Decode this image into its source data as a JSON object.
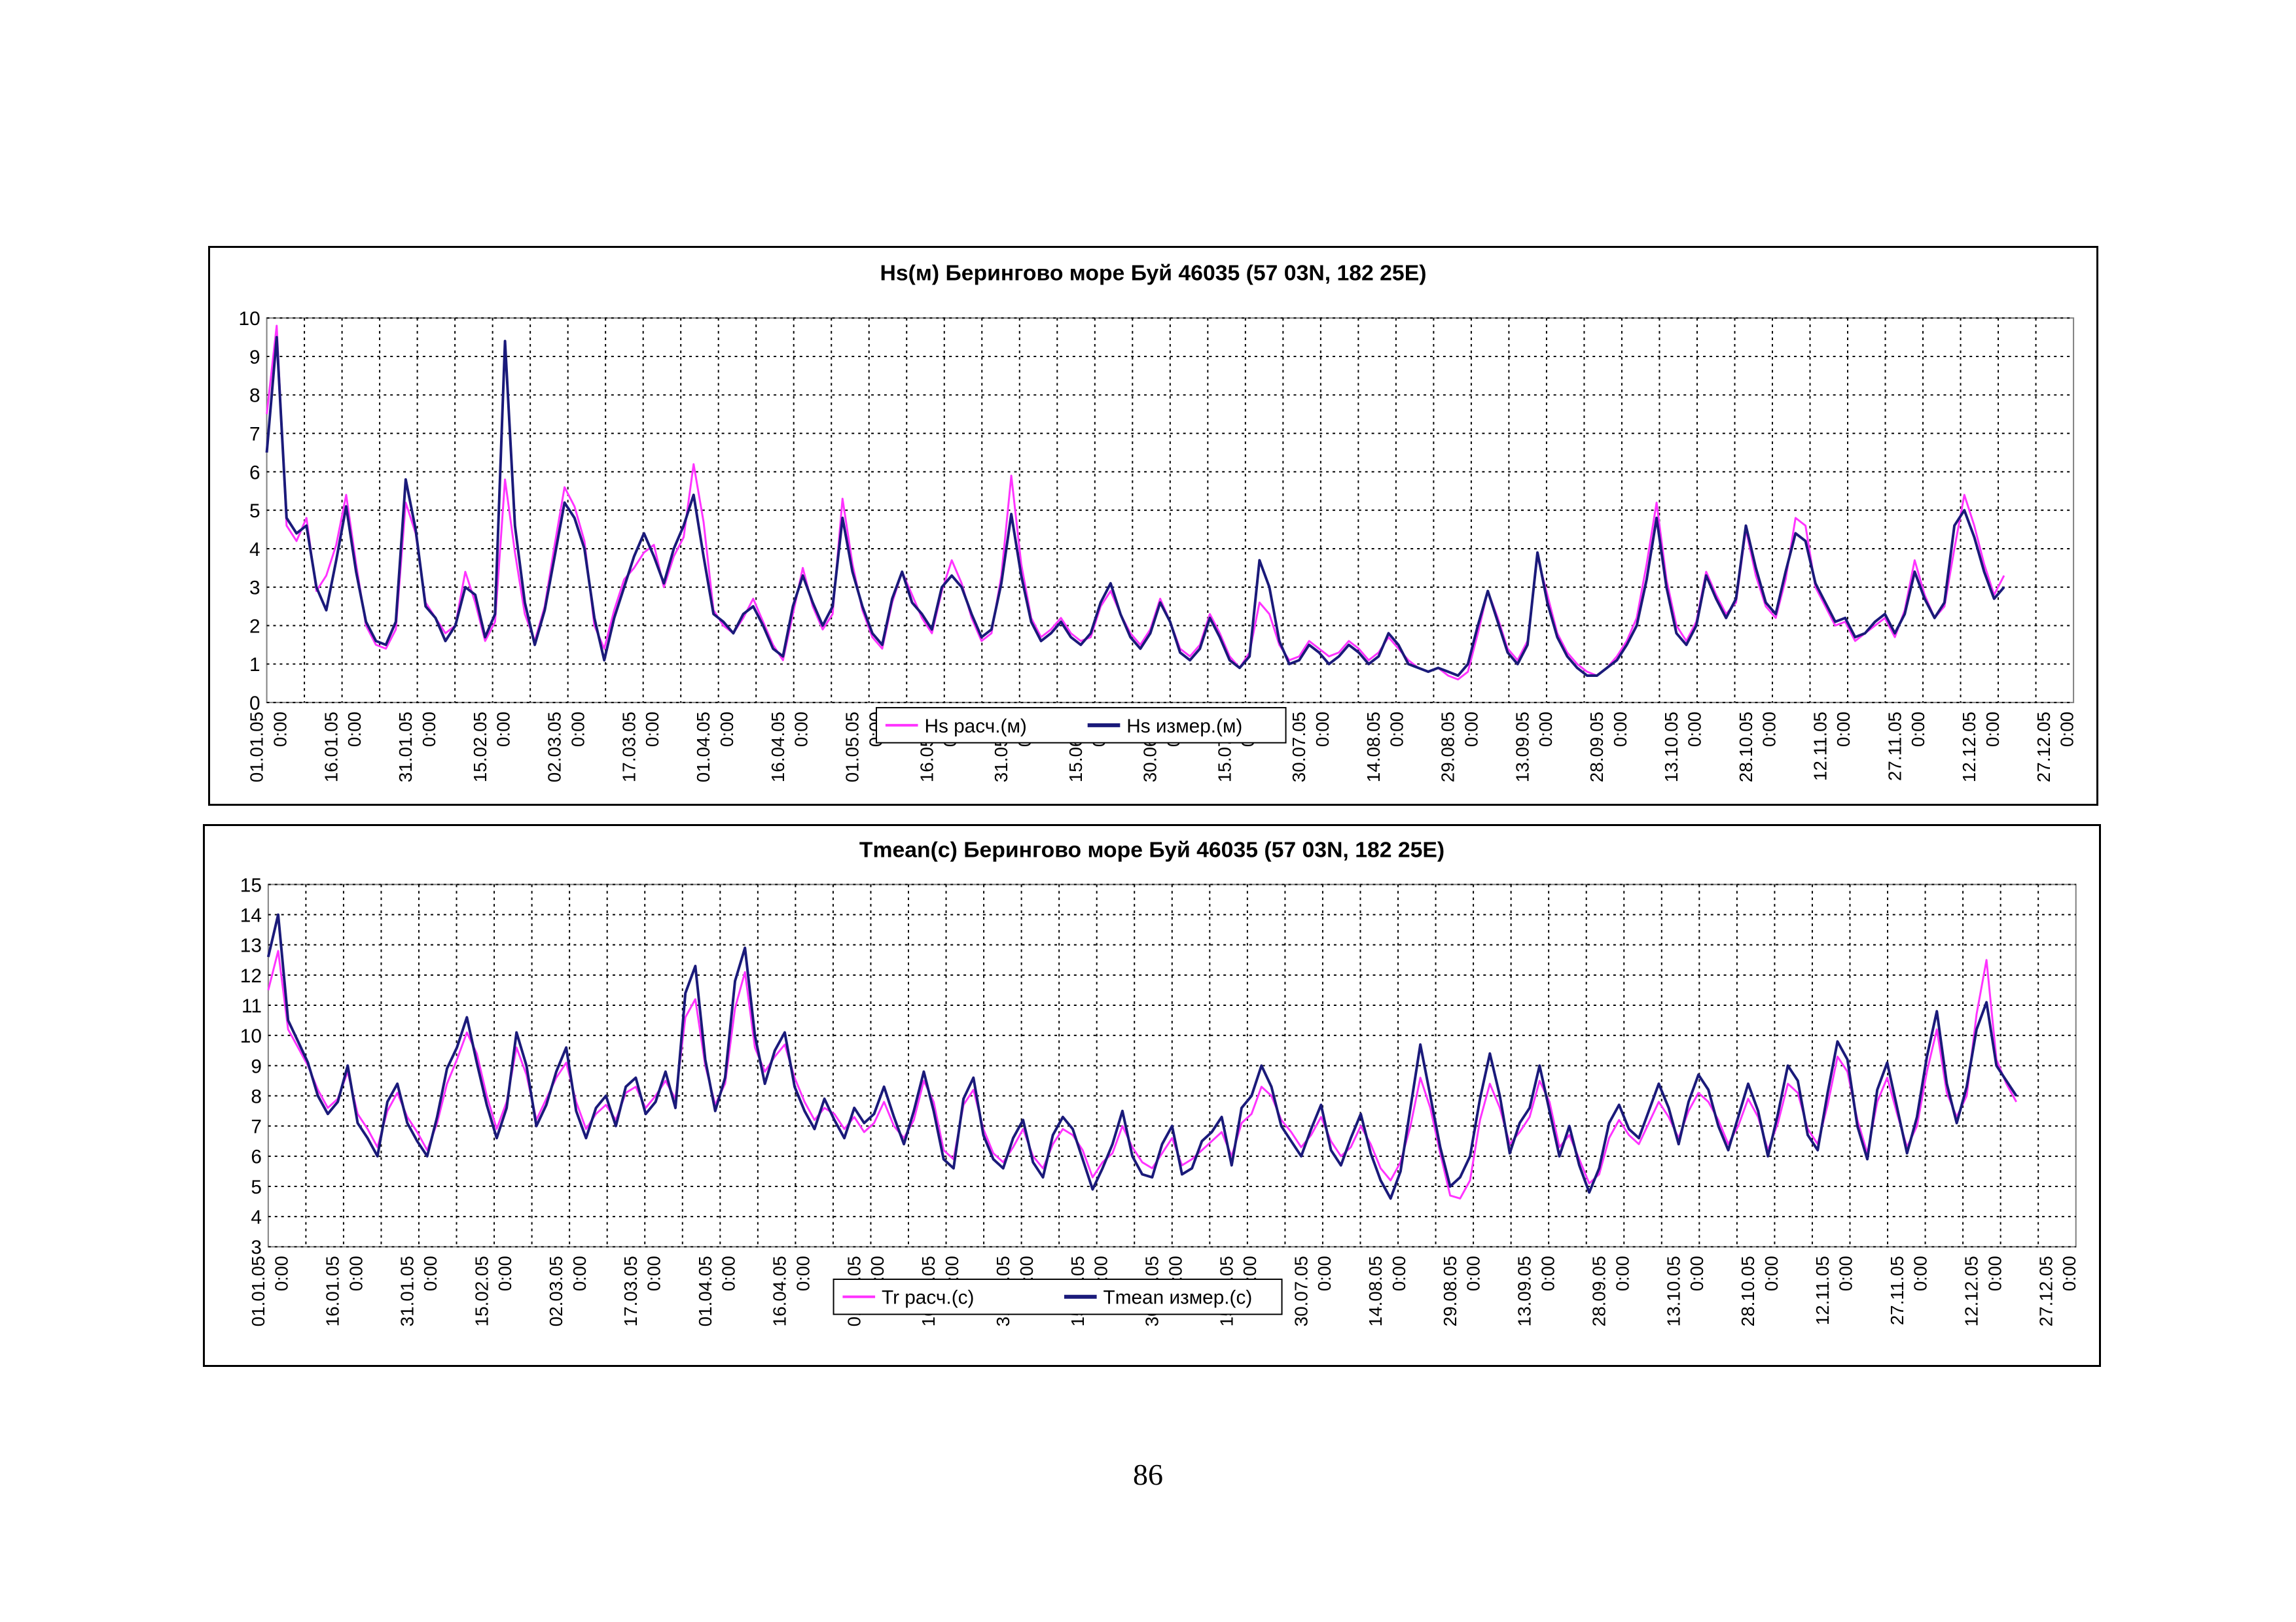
{
  "page": {
    "number": "86"
  },
  "chart_data": [
    {
      "type": "line",
      "title": "Hs(м) Берингово море Буй 46035 (57 03N, 182 25E)",
      "xlabel": "",
      "ylabel": "",
      "ylim": [
        0,
        10
      ],
      "yticks": [
        0,
        1,
        2,
        3,
        4,
        5,
        6,
        7,
        8,
        9,
        10
      ],
      "grid": true,
      "legend_position": "bottom-center",
      "tick_labels": [
        "01.01.05 0:00",
        "16.01.05 0:00",
        "31.01.05 0:00",
        "15.02.05 0:00",
        "02.03.05 0:00",
        "17.03.05 0:00",
        "01.04.05 0:00",
        "16.04.05 0:00",
        "01.05.05 0:00",
        "16.05.05 0:00",
        "31.05.05 0:00",
        "15.06.05 0:00",
        "30.06.05 0:00",
        "15.07.05 0:00",
        "30.07.05 0:00",
        "14.08.05 0:00",
        "29.08.05 0:00",
        "13.09.05 0:00",
        "28.09.05 0:00",
        "13.10.05 0:00",
        "28.10.05 0:00",
        "12.11.05 0:00",
        "27.11.05 0:00",
        "12.12.05 0:00",
        "27.12.05 0:00"
      ],
      "x_days": [
        0,
        2,
        4,
        6,
        8,
        10,
        12,
        14,
        16,
        18,
        20,
        22,
        24,
        26,
        28,
        30,
        32,
        34,
        36,
        38,
        40,
        42,
        44,
        46,
        48,
        50,
        52,
        54,
        56,
        58,
        60,
        62,
        64,
        66,
        68,
        70,
        72,
        74,
        76,
        78,
        80,
        82,
        84,
        86,
        88,
        90,
        92,
        94,
        96,
        98,
        100,
        102,
        104,
        106,
        108,
        110,
        112,
        114,
        116,
        118,
        120,
        122,
        124,
        126,
        128,
        130,
        132,
        134,
        136,
        138,
        140,
        142,
        144,
        146,
        148,
        150,
        152,
        154,
        156,
        158,
        160,
        162,
        164,
        166,
        168,
        170,
        172,
        174,
        176,
        178,
        180,
        182,
        184,
        186,
        188,
        190,
        192,
        194,
        196,
        198,
        200,
        202,
        204,
        206,
        208,
        210,
        212,
        214,
        216,
        218,
        220,
        222,
        224,
        226,
        228,
        230,
        232,
        234,
        236,
        238,
        240,
        242,
        244,
        246,
        248,
        250,
        252,
        254,
        256,
        258,
        260,
        262,
        264,
        266,
        268,
        270,
        272,
        274,
        276,
        278,
        280,
        282,
        284,
        286,
        288,
        290,
        292,
        294,
        296,
        298,
        300,
        302,
        304,
        306,
        308,
        310,
        312,
        314,
        316,
        318,
        320,
        322,
        324,
        326,
        328,
        330,
        332,
        334,
        336,
        338,
        340,
        342,
        344,
        346,
        348,
        350,
        352,
        354,
        356,
        358,
        360,
        362,
        364
      ],
      "series": [
        {
          "name": "Hs расч.(м)",
          "color": "#ff33ff",
          "values": [
            7.5,
            9.8,
            4.6,
            4.2,
            4.8,
            2.9,
            3.3,
            4.1,
            5.4,
            3.6,
            2.0,
            1.5,
            1.4,
            1.9,
            5.2,
            4.4,
            2.6,
            2.2,
            1.8,
            2.0,
            3.4,
            2.6,
            1.6,
            2.1,
            5.8,
            3.9,
            2.3,
            1.6,
            2.5,
            4.1,
            5.6,
            5.1,
            4.2,
            2.0,
            1.4,
            2.4,
            3.2,
            3.5,
            3.9,
            4.1,
            3.0,
            3.8,
            4.3,
            6.2,
            4.7,
            2.4,
            2.0,
            1.8,
            2.2,
            2.7,
            2.1,
            1.5,
            1.1,
            2.3,
            3.5,
            2.5,
            1.9,
            2.3,
            5.3,
            3.6,
            2.4,
            1.7,
            1.4,
            2.6,
            3.4,
            2.8,
            2.2,
            1.8,
            2.9,
            3.7,
            3.1,
            2.2,
            1.6,
            1.8,
            3.3,
            5.9,
            3.6,
            2.2,
            1.7,
            1.9,
            2.2,
            1.8,
            1.6,
            1.7,
            2.5,
            2.9,
            2.3,
            1.8,
            1.5,
            1.9,
            2.7,
            2.1,
            1.4,
            1.2,
            1.5,
            2.3,
            1.8,
            1.2,
            0.9,
            1.3,
            2.6,
            2.3,
            1.5,
            1.1,
            1.2,
            1.6,
            1.4,
            1.2,
            1.3,
            1.6,
            1.4,
            1.1,
            1.3,
            1.7,
            1.4,
            1.1,
            0.9,
            0.8,
            0.9,
            0.7,
            0.6,
            0.8,
            1.8,
            2.9,
            2.2,
            1.4,
            1.1,
            1.6,
            3.8,
            2.8,
            1.8,
            1.3,
            1.0,
            0.8,
            0.7,
            0.9,
            1.2,
            1.6,
            2.2,
            3.6,
            5.2,
            3.2,
            2.0,
            1.6,
            2.1,
            3.4,
            2.8,
            2.3,
            2.6,
            4.5,
            3.3,
            2.5,
            2.2,
            3.2,
            4.8,
            4.6,
            3.0,
            2.5,
            2.0,
            2.1,
            1.6,
            1.8,
            2.0,
            2.2,
            1.7,
            2.4,
            3.7,
            2.8,
            2.2,
            2.5,
            4.0,
            5.4,
            4.6,
            3.6,
            2.8,
            3.3
          ]
        },
        {
          "name": "Hs измер.(м)",
          "color": "#1a1a7a",
          "values": [
            6.5,
            9.5,
            4.8,
            4.4,
            4.6,
            3.0,
            2.4,
            3.7,
            5.1,
            3.4,
            2.1,
            1.6,
            1.5,
            2.1,
            5.8,
            4.5,
            2.5,
            2.2,
            1.6,
            2.0,
            3.0,
            2.8,
            1.7,
            2.3,
            9.4,
            4.6,
            2.6,
            1.5,
            2.4,
            3.8,
            5.2,
            4.8,
            4.0,
            2.2,
            1.1,
            2.2,
            3.0,
            3.8,
            4.4,
            3.8,
            3.1,
            4.0,
            4.6,
            5.4,
            3.8,
            2.3,
            2.1,
            1.8,
            2.3,
            2.5,
            2.0,
            1.4,
            1.2,
            2.5,
            3.3,
            2.6,
            2.0,
            2.5,
            4.8,
            3.4,
            2.5,
            1.8,
            1.5,
            2.7,
            3.4,
            2.6,
            2.3,
            1.9,
            3.0,
            3.3,
            3.0,
            2.3,
            1.7,
            1.9,
            3.1,
            4.9,
            3.3,
            2.1,
            1.6,
            1.8,
            2.1,
            1.7,
            1.5,
            1.8,
            2.6,
            3.1,
            2.3,
            1.7,
            1.4,
            1.8,
            2.6,
            2.1,
            1.3,
            1.1,
            1.4,
            2.2,
            1.7,
            1.1,
            0.9,
            1.2,
            3.7,
            3.0,
            1.6,
            1.0,
            1.1,
            1.5,
            1.3,
            1.0,
            1.2,
            1.5,
            1.3,
            1.0,
            1.2,
            1.8,
            1.5,
            1.0,
            0.9,
            0.8,
            0.9,
            0.8,
            0.7,
            1.0,
            2.0,
            2.9,
            2.1,
            1.3,
            1.0,
            1.5,
            3.9,
            2.6,
            1.7,
            1.2,
            0.9,
            0.7,
            0.7,
            0.9,
            1.1,
            1.5,
            2.0,
            3.2,
            4.8,
            3.0,
            1.8,
            1.5,
            2.0,
            3.3,
            2.7,
            2.2,
            2.7,
            4.6,
            3.5,
            2.6,
            2.3,
            3.4,
            4.4,
            4.2,
            3.1,
            2.6,
            2.1,
            2.2,
            1.7,
            1.8,
            2.1,
            2.3,
            1.8,
            2.3,
            3.4,
            2.7,
            2.2,
            2.6,
            4.6,
            5.0,
            4.3,
            3.4,
            2.7,
            3.0
          ]
        }
      ]
    },
    {
      "type": "line",
      "title": "Tmean(с) Берингово море Буй 46035 (57 03N, 182 25E)",
      "xlabel": "",
      "ylabel": "",
      "ylim": [
        3,
        15
      ],
      "yticks": [
        3,
        4,
        5,
        6,
        7,
        8,
        9,
        10,
        11,
        12,
        13,
        14,
        15
      ],
      "grid": true,
      "legend_position": "bottom-center",
      "tick_labels": [
        "01.01.05 0:00",
        "16.01.05 0:00",
        "31.01.05 0:00",
        "15.02.05 0:00",
        "02.03.05 0:00",
        "17.03.05 0:00",
        "01.04.05 0:00",
        "16.04.05 0:00",
        "01.05.05 0:00",
        "16.05.05 0:00",
        "31.05.05 0:00",
        "15.06.05 0:00",
        "30.06.05 0:00",
        "15.07.05 0:00",
        "30.07.05 0:00",
        "14.08.05 0:00",
        "29.08.05 0:00",
        "13.09.05 0:00",
        "28.09.05 0:00",
        "13.10.05 0:00",
        "28.10.05 0:00",
        "12.11.05 0:00",
        "27.11.05 0:00",
        "12.12.05 0:00",
        "27.12.05 0:00"
      ],
      "x_days": [
        0,
        2,
        4,
        6,
        8,
        10,
        12,
        14,
        16,
        18,
        20,
        22,
        24,
        26,
        28,
        30,
        32,
        34,
        36,
        38,
        40,
        42,
        44,
        46,
        48,
        50,
        52,
        54,
        56,
        58,
        60,
        62,
        64,
        66,
        68,
        70,
        72,
        74,
        76,
        78,
        80,
        82,
        84,
        86,
        88,
        90,
        92,
        94,
        96,
        98,
        100,
        102,
        104,
        106,
        108,
        110,
        112,
        114,
        116,
        118,
        120,
        122,
        124,
        126,
        128,
        130,
        132,
        134,
        136,
        138,
        140,
        142,
        144,
        146,
        148,
        150,
        152,
        154,
        156,
        158,
        160,
        162,
        164,
        166,
        168,
        170,
        172,
        174,
        176,
        178,
        180,
        182,
        184,
        186,
        188,
        190,
        192,
        194,
        196,
        198,
        200,
        202,
        204,
        206,
        208,
        210,
        212,
        214,
        216,
        218,
        220,
        222,
        224,
        226,
        228,
        230,
        232,
        234,
        236,
        238,
        240,
        242,
        244,
        246,
        248,
        250,
        252,
        254,
        256,
        258,
        260,
        262,
        264,
        266,
        268,
        270,
        272,
        274,
        276,
        278,
        280,
        282,
        284,
        286,
        288,
        290,
        292,
        294,
        296,
        298,
        300,
        302,
        304,
        306,
        308,
        310,
        312,
        314,
        316,
        318,
        320,
        322,
        324,
        326,
        328,
        330,
        332,
        334,
        336,
        338,
        340,
        342,
        344,
        346,
        348,
        350,
        352,
        354,
        356,
        358,
        360,
        362,
        364
      ],
      "series": [
        {
          "name": "Tr расч.(с)",
          "color": "#ff33ff",
          "values": [
            11.5,
            12.8,
            10.2,
            9.6,
            9.0,
            8.2,
            7.6,
            7.9,
            8.8,
            7.4,
            6.9,
            6.3,
            7.5,
            8.1,
            7.3,
            6.8,
            6.2,
            7.1,
            8.4,
            9.2,
            10.1,
            9.4,
            8.0,
            6.9,
            7.8,
            9.6,
            8.7,
            7.2,
            7.9,
            8.6,
            9.1,
            7.8,
            6.9,
            7.4,
            7.7,
            7.2,
            8.1,
            8.3,
            7.6,
            8.0,
            8.5,
            7.9,
            10.6,
            11.2,
            9.0,
            7.7,
            8.4,
            10.9,
            12.1,
            9.6,
            8.8,
            9.3,
            9.7,
            8.6,
            7.8,
            7.2,
            7.6,
            7.4,
            6.9,
            7.3,
            6.8,
            7.1,
            7.8,
            7.0,
            6.6,
            7.2,
            8.5,
            7.8,
            6.2,
            5.9,
            7.7,
            8.2,
            6.9,
            6.1,
            5.8,
            6.3,
            6.9,
            6.0,
            5.6,
            6.4,
            6.9,
            6.7,
            6.2,
            5.3,
            5.8,
            6.1,
            7.0,
            6.3,
            5.8,
            5.6,
            6.1,
            6.6,
            5.7,
            5.9,
            6.2,
            6.5,
            6.8,
            6.0,
            7.1,
            7.4,
            8.3,
            8.0,
            7.2,
            6.8,
            6.3,
            6.7,
            7.3,
            6.5,
            6.0,
            6.3,
            7.0,
            6.4,
            5.6,
            5.2,
            5.8,
            7.0,
            8.6,
            7.6,
            6.1,
            4.7,
            4.6,
            5.2,
            7.2,
            8.4,
            7.6,
            6.4,
            6.8,
            7.3,
            8.5,
            7.8,
            6.3,
            6.7,
            5.9,
            5.1,
            5.4,
            6.6,
            7.2,
            6.7,
            6.4,
            7.1,
            7.8,
            7.3,
            6.6,
            7.5,
            8.1,
            7.8,
            7.2,
            6.4,
            7.0,
            7.9,
            7.3,
            6.2,
            7.1,
            8.4,
            8.1,
            6.9,
            6.4,
            7.7,
            9.3,
            8.8,
            7.2,
            6.1,
            7.8,
            8.6,
            7.4,
            6.3,
            7.0,
            8.8,
            10.2,
            8.1,
            7.3,
            8.0,
            10.7,
            12.5,
            9.2,
            8.4,
            7.8
          ]
        },
        {
          "name": "Tmean измер.(с)",
          "color": "#1a1a7a",
          "values": [
            12.6,
            14.0,
            10.5,
            9.8,
            9.1,
            8.0,
            7.4,
            7.8,
            9.0,
            7.1,
            6.6,
            6.0,
            7.8,
            8.4,
            7.1,
            6.5,
            6.0,
            7.3,
            8.9,
            9.6,
            10.6,
            9.1,
            7.7,
            6.6,
            7.6,
            10.1,
            9.0,
            7.0,
            7.7,
            8.8,
            9.6,
            7.5,
            6.6,
            7.6,
            8.0,
            7.0,
            8.3,
            8.6,
            7.4,
            7.8,
            8.8,
            7.6,
            11.4,
            12.3,
            9.2,
            7.5,
            8.6,
            11.8,
            12.9,
            10.0,
            8.4,
            9.5,
            10.1,
            8.3,
            7.5,
            6.9,
            7.9,
            7.2,
            6.6,
            7.6,
            7.1,
            7.4,
            8.3,
            7.3,
            6.4,
            7.5,
            8.8,
            7.5,
            5.9,
            5.6,
            7.9,
            8.6,
            6.7,
            5.9,
            5.6,
            6.6,
            7.2,
            5.8,
            5.3,
            6.7,
            7.3,
            6.9,
            5.9,
            4.9,
            5.6,
            6.4,
            7.5,
            6.0,
            5.4,
            5.3,
            6.4,
            7.0,
            5.4,
            5.6,
            6.5,
            6.8,
            7.3,
            5.7,
            7.6,
            8.0,
            9.0,
            8.3,
            7.0,
            6.5,
            6.0,
            6.9,
            7.7,
            6.2,
            5.7,
            6.6,
            7.4,
            6.1,
            5.2,
            4.6,
            5.5,
            7.6,
            9.7,
            8.0,
            6.3,
            5.0,
            5.3,
            6.0,
            7.9,
            9.4,
            8.0,
            6.1,
            7.1,
            7.6,
            9.0,
            7.5,
            6.0,
            7.0,
            5.7,
            4.8,
            5.6,
            7.1,
            7.7,
            6.9,
            6.6,
            7.5,
            8.4,
            7.6,
            6.4,
            7.8,
            8.7,
            8.2,
            7.0,
            6.2,
            7.3,
            8.4,
            7.5,
            6.0,
            7.4,
            9.0,
            8.5,
            6.7,
            6.2,
            8.1,
            9.8,
            9.2,
            7.0,
            5.9,
            8.2,
            9.1,
            7.6,
            6.1,
            7.3,
            9.3,
            10.8,
            8.4,
            7.1,
            8.3,
            10.2,
            11.1,
            9.0,
            8.5,
            8.0
          ]
        }
      ]
    }
  ]
}
